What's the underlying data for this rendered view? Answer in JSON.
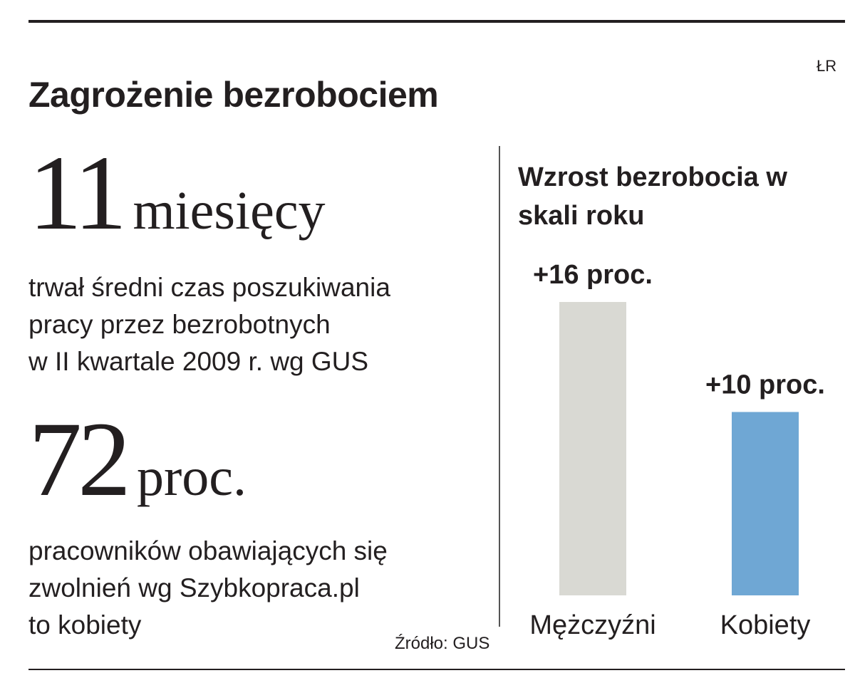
{
  "header": {
    "title": "Zagrożenie bezrobociem",
    "author": "ŁR"
  },
  "stats": [
    {
      "number": "11",
      "unit": "miesięcy",
      "description": [
        "trwał średni czas poszukiwania",
        "pracy przez bezrobotnych",
        "w II kwartale 2009 r. wg GUS"
      ]
    },
    {
      "number": "72",
      "unit": "proc.",
      "description": [
        "pracowników obawiających się",
        "zwolnień wg Szybkopraca.pl",
        "to kobiety"
      ]
    }
  ],
  "chart_data": {
    "type": "bar",
    "title": "Wzrost bezrobocia w skali roku",
    "categories": [
      "Mężczyźni",
      "Kobiety"
    ],
    "values": [
      16,
      10
    ],
    "value_labels": [
      "+16 proc.",
      "+10 proc."
    ],
    "colors": [
      "#d9d9d3",
      "#6fa7d4"
    ]
  },
  "source": "Źródło: GUS"
}
